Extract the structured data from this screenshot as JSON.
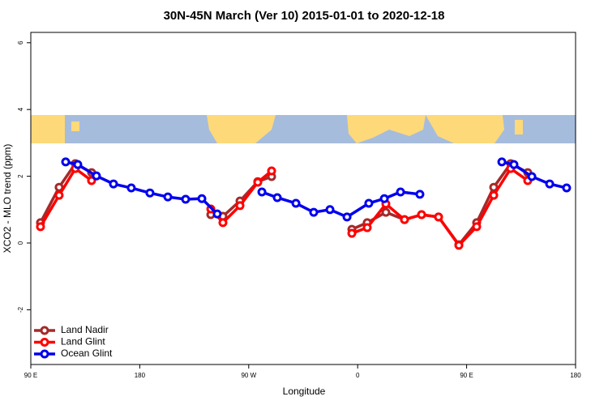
{
  "chart_data": {
    "type": "line",
    "title": "30N-45N March (Ver 10)   2015-01-01 to 2020-12-18",
    "xlabel": "Longitude",
    "ylabel": "XCO2 - MLO trend (ppm)",
    "xlim": [
      90,
      540
    ],
    "ylim": [
      -3.64,
      6.31
    ],
    "xticks": [
      {
        "value": 90,
        "label": "90 E"
      },
      180,
      {
        "value": 270,
        "label": "90 W"
      },
      {
        "value": 360,
        "label": "0"
      },
      {
        "value": 450,
        "label": "90 E"
      },
      {
        "value": 540,
        "label": "180"
      }
    ],
    "yticks": [
      6,
      4,
      2,
      0,
      -2
    ],
    "legend": "bottom-left",
    "series": [
      {
        "name": "Land Nadir",
        "color": "#a52a2a",
        "x": [
          98,
          113.4,
          126.8,
          140.2,
          null,
          238.7,
          248.7,
          262.8,
          277.5,
          288.9,
          null,
          355.2,
          367.9,
          383.3,
          398.7,
          412.8,
          426.8,
          443.6,
          458.3,
          472.4,
          486.4,
          500.5
        ],
        "values": [
          0.61,
          1.67,
          2.38,
          2.11,
          null,
          0.85,
          0.8,
          1.26,
          1.84,
          1.99,
          null,
          0.41,
          0.61,
          0.92,
          0.7,
          0.85,
          0.78,
          -0.05,
          0.61,
          1.67,
          2.38,
          2.11
        ]
      },
      {
        "name": "Land Glint",
        "color": "#ff0000",
        "x": [
          98,
          113.4,
          126.8,
          140.2,
          null,
          238.7,
          248.7,
          262.8,
          277.5,
          288.9,
          null,
          355.2,
          367.9,
          383.3,
          398.7,
          412.8,
          426.8,
          443.6,
          458.3,
          472.4,
          486.4,
          500.5
        ],
        "values": [
          0.49,
          1.43,
          2.23,
          1.87,
          null,
          1.02,
          0.61,
          1.12,
          1.82,
          2.16,
          null,
          0.29,
          0.46,
          1.17,
          0.7,
          0.85,
          0.78,
          -0.07,
          0.49,
          1.43,
          2.23,
          1.87
        ]
      },
      {
        "name": "Ocean Glint",
        "color": "#0000ee",
        "x": [
          118.8,
          128.8,
          144.2,
          158.3,
          173,
          188.4,
          203.2,
          217.9,
          231.3,
          244,
          null,
          280.9,
          293.6,
          309,
          323.7,
          337.1,
          351.2,
          369.2,
          382,
          395.4,
          411.4,
          null,
          479.1,
          489.1,
          503.9,
          518.6,
          532.6
        ],
        "values": [
          2.43,
          2.35,
          2.01,
          1.77,
          1.65,
          1.5,
          1.38,
          1.31,
          1.33,
          0.87,
          null,
          1.53,
          1.36,
          1.19,
          0.92,
          1.0,
          0.78,
          1.19,
          1.33,
          1.53,
          1.46,
          null,
          2.43,
          2.35,
          1.99,
          1.77,
          1.65
        ]
      }
    ]
  }
}
